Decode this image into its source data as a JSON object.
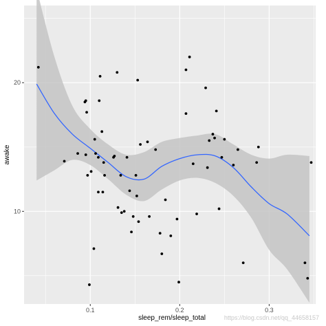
{
  "chart_data": {
    "type": "scatter",
    "xlabel": "sleep_rem/sleep_total",
    "ylabel": "awake",
    "xlim": [
      0.026,
      0.352
    ],
    "ylim": [
      2.8,
      26.0
    ],
    "x_ticks": [
      0.1,
      0.2,
      0.3
    ],
    "x_tick_labels": [
      "0.1",
      "0.2",
      "0.3"
    ],
    "y_ticks": [
      10,
      20
    ],
    "y_tick_labels": [
      "10",
      "20"
    ],
    "grid": true,
    "panel_background": "#ebebeb",
    "grid_color": "#ffffff",
    "point_color": "#000000",
    "smooth_color": "#3366ff",
    "ribbon_color": "#c4c4c4",
    "points": [
      [
        0.042,
        21.2
      ],
      [
        0.071,
        13.9
      ],
      [
        0.086,
        14.5
      ],
      [
        0.094,
        18.5
      ],
      [
        0.095,
        18.6
      ],
      [
        0.095,
        14.4
      ],
      [
        0.096,
        17.7
      ],
      [
        0.097,
        12.8
      ],
      [
        0.099,
        4.3
      ],
      [
        0.101,
        13.1
      ],
      [
        0.104,
        7.1
      ],
      [
        0.105,
        15.6
      ],
      [
        0.106,
        14.5
      ],
      [
        0.109,
        14.2
      ],
      [
        0.109,
        11.5
      ],
      [
        0.11,
        18.6
      ],
      [
        0.111,
        20.5
      ],
      [
        0.113,
        16.2
      ],
      [
        0.114,
        11.5
      ],
      [
        0.115,
        13.8
      ],
      [
        0.116,
        12.8
      ],
      [
        0.126,
        14.2
      ],
      [
        0.127,
        14.3
      ],
      [
        0.13,
        20.8
      ],
      [
        0.131,
        10.3
      ],
      [
        0.134,
        12.8
      ],
      [
        0.135,
        9.9
      ],
      [
        0.138,
        10.0
      ],
      [
        0.141,
        14.2
      ],
      [
        0.144,
        11.6
      ],
      [
        0.146,
        8.4
      ],
      [
        0.148,
        9.6
      ],
      [
        0.151,
        12.8
      ],
      [
        0.152,
        11.2
      ],
      [
        0.153,
        20.2
      ],
      [
        0.154,
        9.2
      ],
      [
        0.156,
        15.2
      ],
      [
        0.164,
        15.4
      ],
      [
        0.166,
        9.6
      ],
      [
        0.173,
        14.8
      ],
      [
        0.178,
        8.3
      ],
      [
        0.18,
        6.7
      ],
      [
        0.184,
        10.9
      ],
      [
        0.19,
        8.1
      ],
      [
        0.197,
        9.4
      ],
      [
        0.199,
        4.5
      ],
      [
        0.207,
        17.6
      ],
      [
        0.207,
        21.0
      ],
      [
        0.211,
        22.0
      ],
      [
        0.215,
        13.7
      ],
      [
        0.219,
        9.8
      ],
      [
        0.229,
        19.6
      ],
      [
        0.231,
        13.4
      ],
      [
        0.233,
        15.5
      ],
      [
        0.237,
        16.0
      ],
      [
        0.239,
        15.7
      ],
      [
        0.241,
        17.8
      ],
      [
        0.244,
        10.2
      ],
      [
        0.247,
        14.2
      ],
      [
        0.25,
        15.6
      ],
      [
        0.26,
        13.6
      ],
      [
        0.265,
        14.8
      ],
      [
        0.271,
        6.0
      ],
      [
        0.286,
        13.8
      ],
      [
        0.288,
        15.0
      ],
      [
        0.34,
        6.0
      ],
      [
        0.343,
        4.8
      ],
      [
        0.347,
        13.8
      ]
    ],
    "smooth": [
      [
        0.04,
        19.9
      ],
      [
        0.06,
        17.6
      ],
      [
        0.08,
        16.0
      ],
      [
        0.1,
        14.9
      ],
      [
        0.12,
        13.8
      ],
      [
        0.14,
        12.7
      ],
      [
        0.16,
        12.5
      ],
      [
        0.18,
        13.5
      ],
      [
        0.2,
        14.1
      ],
      [
        0.22,
        14.4
      ],
      [
        0.24,
        14.3
      ],
      [
        0.26,
        13.4
      ],
      [
        0.28,
        11.9
      ],
      [
        0.3,
        10.6
      ],
      [
        0.32,
        9.8
      ],
      [
        0.345,
        8.1
      ]
    ],
    "ribbon_upper": [
      [
        0.04,
        27.3
      ],
      [
        0.06,
        22.0
      ],
      [
        0.08,
        18.2
      ],
      [
        0.1,
        16.4
      ],
      [
        0.12,
        15.2
      ],
      [
        0.14,
        14.4
      ],
      [
        0.16,
        14.6
      ],
      [
        0.18,
        15.4
      ],
      [
        0.2,
        15.7
      ],
      [
        0.22,
        15.9
      ],
      [
        0.24,
        16.0
      ],
      [
        0.26,
        15.2
      ],
      [
        0.28,
        14.4
      ],
      [
        0.3,
        14.1
      ],
      [
        0.32,
        14.4
      ],
      [
        0.345,
        14.3
      ]
    ],
    "ribbon_lower": [
      [
        0.04,
        12.4
      ],
      [
        0.06,
        13.2
      ],
      [
        0.08,
        14.0
      ],
      [
        0.1,
        13.6
      ],
      [
        0.12,
        12.5
      ],
      [
        0.14,
        11.3
      ],
      [
        0.16,
        10.8
      ],
      [
        0.18,
        11.7
      ],
      [
        0.2,
        12.4
      ],
      [
        0.22,
        12.6
      ],
      [
        0.24,
        12.2
      ],
      [
        0.26,
        11.2
      ],
      [
        0.28,
        9.5
      ],
      [
        0.3,
        7.0
      ],
      [
        0.32,
        5.5
      ],
      [
        0.345,
        2.9
      ]
    ]
  },
  "watermark": "https://blog.csdn.net/qq_44658157"
}
